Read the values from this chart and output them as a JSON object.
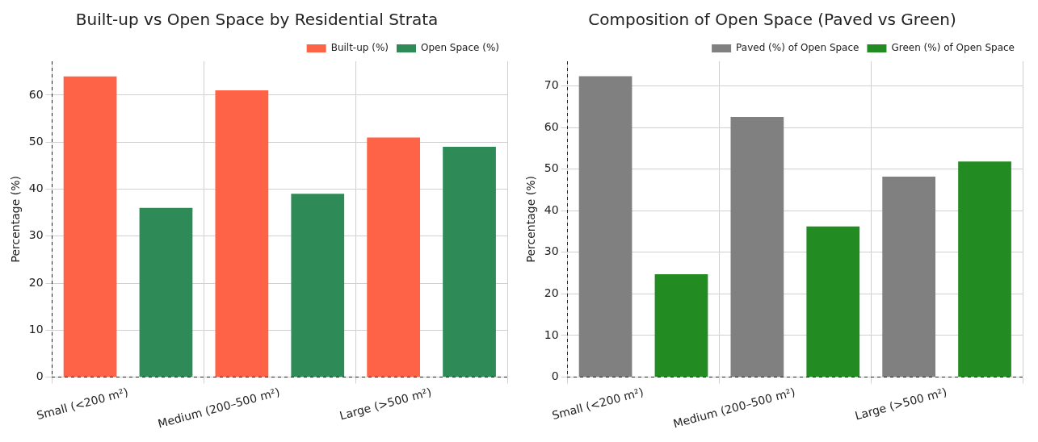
{
  "chart_data": [
    {
      "type": "bar",
      "title": "Built-up vs Open Space by Residential Strata",
      "ylabel": "Percentage (%)",
      "categories": [
        "Small (<200 m²)",
        "Medium (200–500 m²)",
        "Large (>500 m²)"
      ],
      "series": [
        {
          "name": "Built-up (%)",
          "color": "#ff6347",
          "values": [
            64,
            61,
            51
          ]
        },
        {
          "name": "Open Space (%)",
          "color": "#2e8b57",
          "values": [
            36,
            39,
            49
          ]
        }
      ],
      "ylim": [
        0,
        67.2
      ],
      "yticks": [
        0,
        10,
        20,
        30,
        40,
        50,
        60
      ],
      "grid": true,
      "legend": "top right"
    },
    {
      "type": "bar",
      "title": "Composition of Open Space (Paved vs Green)",
      "ylabel": "Percentage (%)",
      "categories": [
        "Small (<200 m²)",
        "Medium (200–500 m²)",
        "Large (>500 m²)"
      ],
      "series": [
        {
          "name": "Paved (%) of Open Space",
          "color": "#808080",
          "values": [
            72.3,
            62.5,
            48.2
          ]
        },
        {
          "name": "Green (%) of Open Space",
          "color": "#228b22",
          "values": [
            24.7,
            36.2,
            51.8
          ]
        }
      ],
      "ylim": [
        0,
        75.9
      ],
      "yticks": [
        0,
        10,
        20,
        30,
        40,
        50,
        60,
        70
      ],
      "grid": true,
      "legend": "top right"
    }
  ]
}
